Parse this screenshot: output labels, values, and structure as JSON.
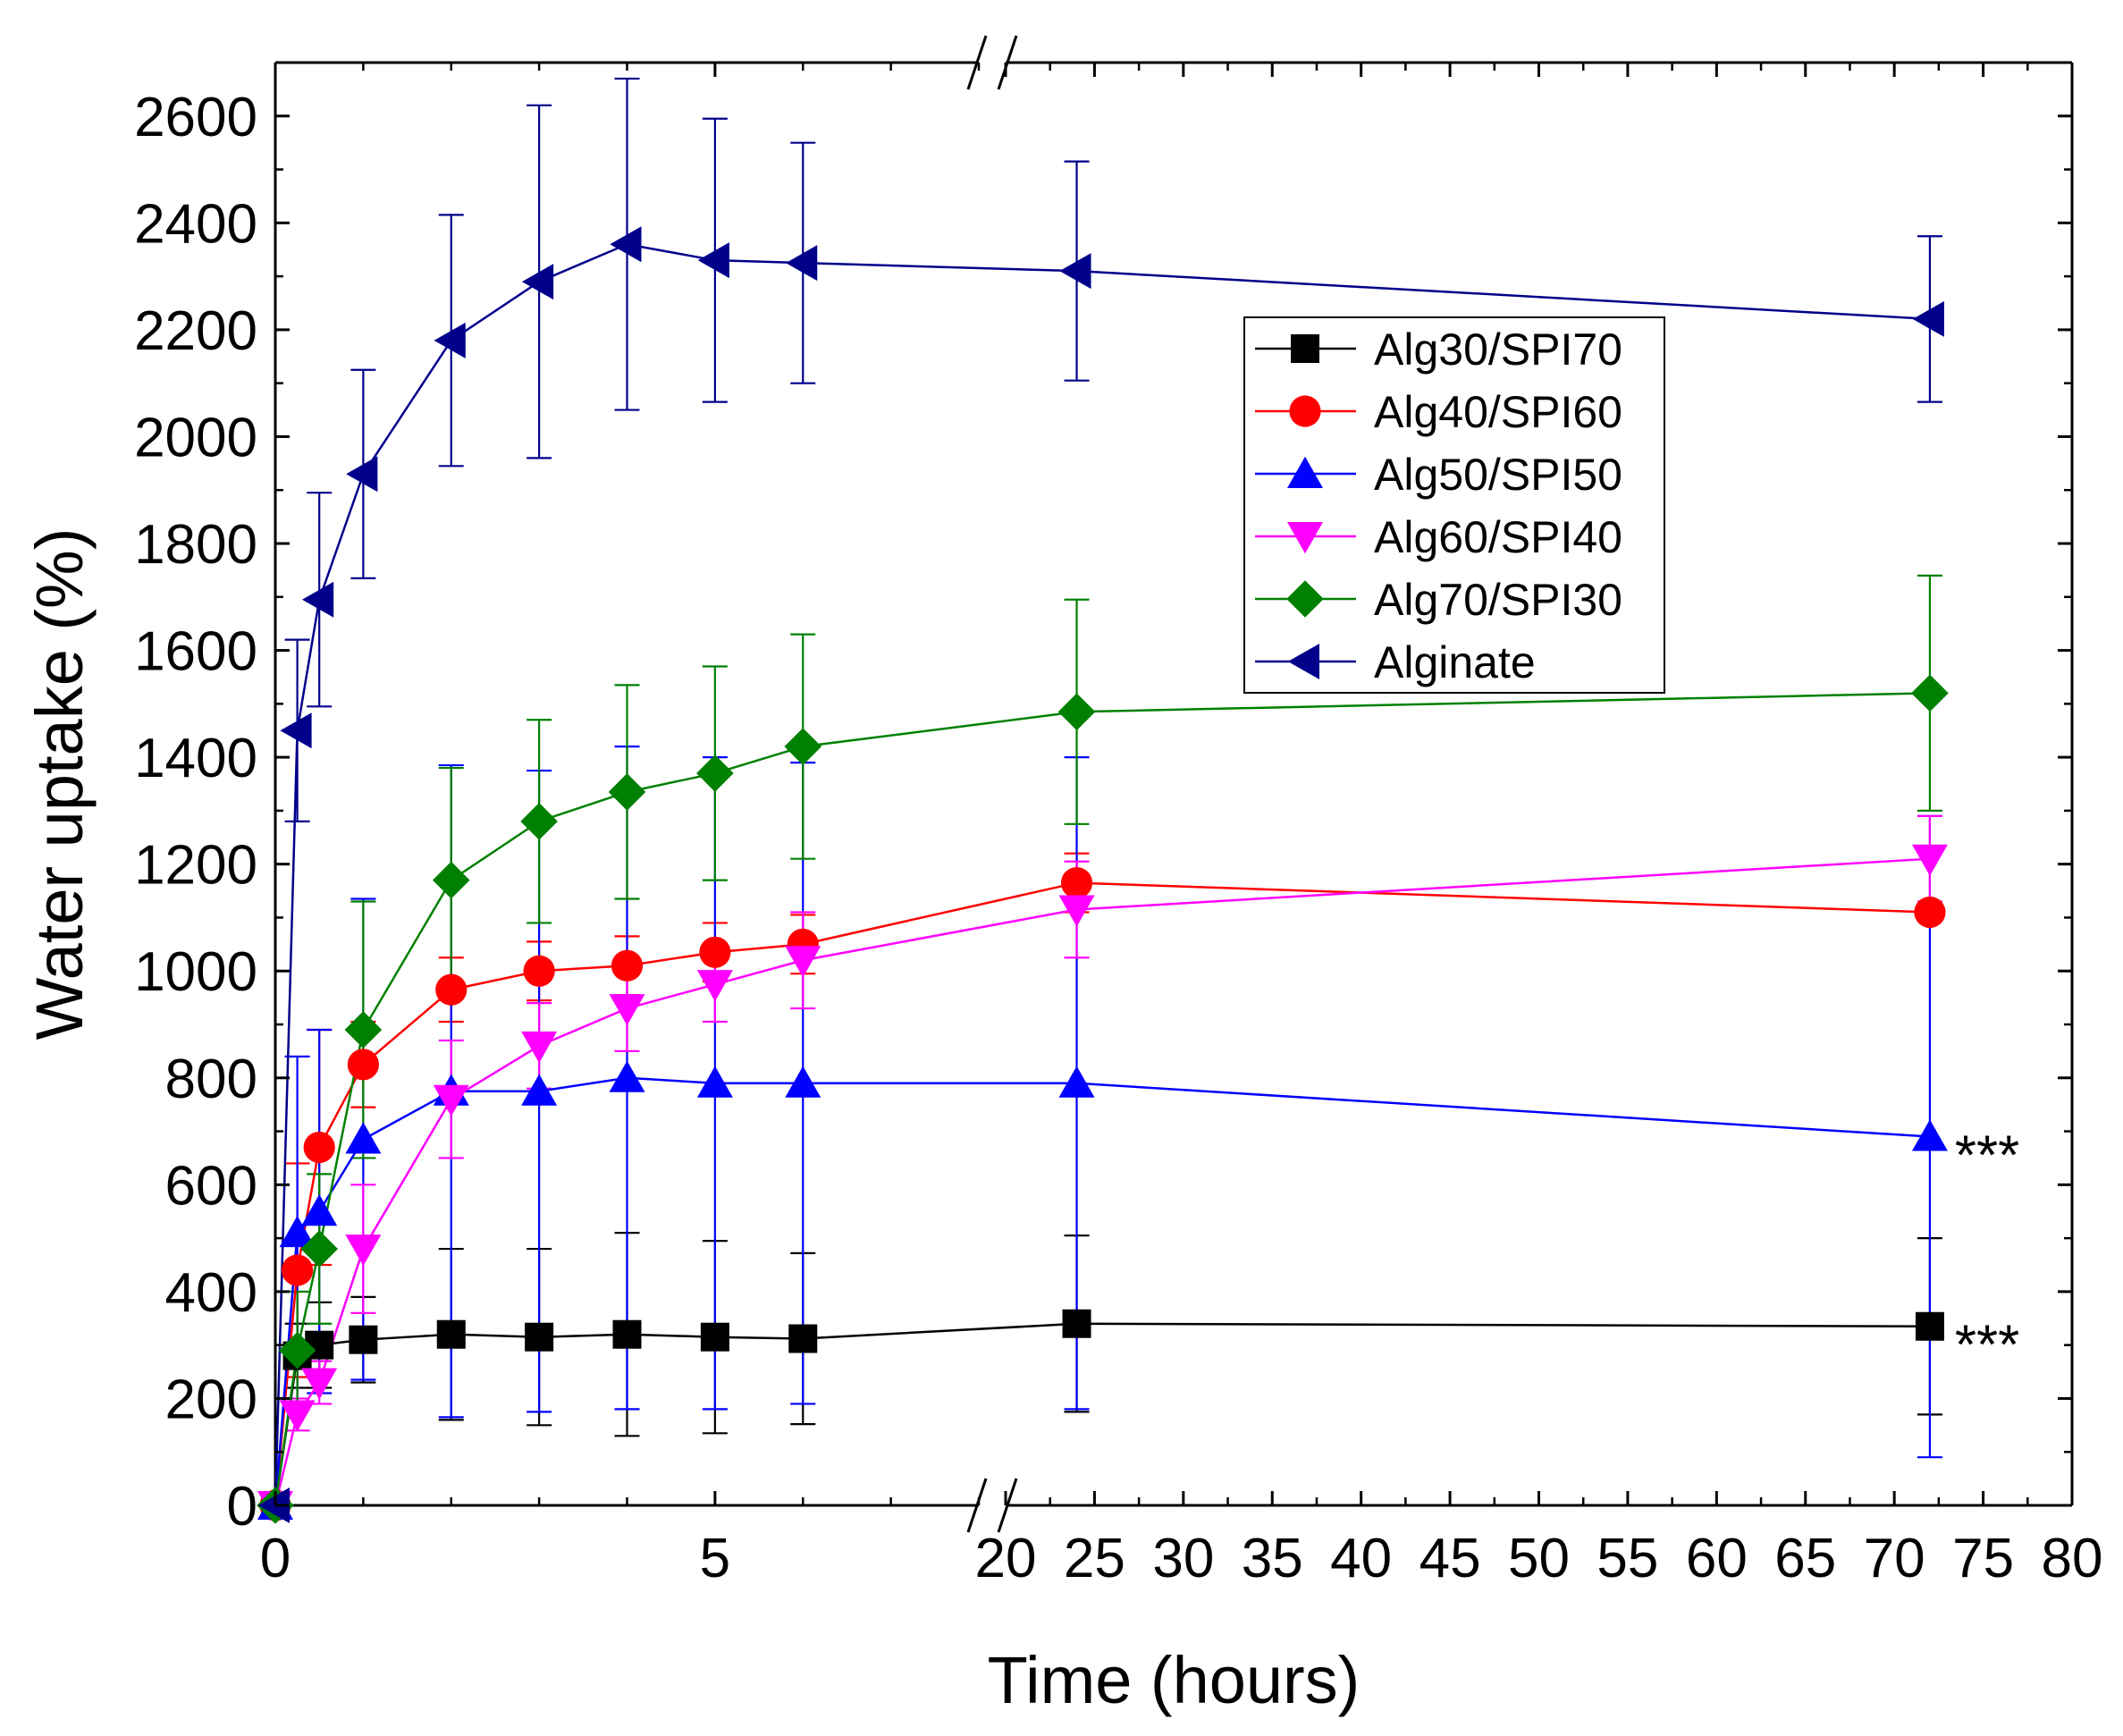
{
  "chart_data": {
    "type": "line",
    "xlabel": "Time (hours)",
    "ylabel": "Water uptake (%)",
    "ylim": [
      0,
      2700
    ],
    "y_ticks": [
      0,
      200,
      400,
      600,
      800,
      1000,
      1200,
      1400,
      1600,
      1800,
      2000,
      2200,
      2400,
      2600
    ],
    "x_axis_break": {
      "left_range": [
        0,
        8
      ],
      "right_range": [
        20,
        80
      ]
    },
    "x_ticks_left": [
      0,
      5
    ],
    "x_ticks_right": [
      20,
      25,
      30,
      35,
      40,
      45,
      50,
      55,
      60,
      65,
      70,
      75,
      80
    ],
    "legend_position": "upper-right",
    "series": [
      {
        "name": "Alg30/SPI70",
        "color": "#000000",
        "marker": "square",
        "x": [
          0,
          0.25,
          0.5,
          1,
          2,
          3,
          4,
          5,
          6,
          24,
          72
        ],
        "y": [
          0,
          280,
          300,
          310,
          320,
          315,
          320,
          315,
          312,
          340,
          335
        ],
        "err": [
          0,
          60,
          80,
          80,
          160,
          165,
          190,
          180,
          160,
          165,
          165
        ]
      },
      {
        "name": "Alg40/SPI60",
        "color": "#ff0000",
        "marker": "circle",
        "x": [
          0,
          0.25,
          0.5,
          1,
          2,
          3,
          4,
          5,
          6,
          24,
          72
        ],
        "y": [
          0,
          440,
          670,
          825,
          965,
          1000,
          1010,
          1035,
          1050,
          1165,
          1110
        ],
        "err": [
          0,
          200,
          220,
          80,
          60,
          55,
          55,
          55,
          55,
          55,
          0
        ]
      },
      {
        "name": "Alg50/SPI50",
        "color": "#0000ff",
        "marker": "triangle-up",
        "x": [
          0,
          0.25,
          0.5,
          1,
          2,
          3,
          4,
          5,
          6,
          24,
          72
        ],
        "y": [
          0,
          510,
          550,
          685,
          775,
          775,
          800,
          790,
          790,
          790,
          690
        ],
        "err": [
          0,
          330,
          340,
          450,
          610,
          600,
          620,
          610,
          600,
          610,
          600
        ]
      },
      {
        "name": "Alg60/SPI40",
        "color": "#ff00ff",
        "marker": "triangle-down",
        "x": [
          0,
          0.25,
          0.5,
          1,
          2,
          3,
          4,
          5,
          6,
          24,
          72
        ],
        "y": [
          0,
          170,
          230,
          480,
          760,
          860,
          930,
          975,
          1020,
          1115,
          1210
        ],
        "err": [
          0,
          30,
          40,
          120,
          110,
          80,
          80,
          70,
          90,
          90,
          80
        ]
      },
      {
        "name": "Alg70/SPI30",
        "color": "#008000",
        "marker": "diamond",
        "x": [
          0,
          0.25,
          0.5,
          1,
          2,
          3,
          4,
          5,
          6,
          24,
          72
        ],
        "y": [
          0,
          290,
          480,
          890,
          1170,
          1280,
          1335,
          1370,
          1420,
          1485,
          1520
        ],
        "err": [
          0,
          110,
          140,
          240,
          210,
          190,
          200,
          200,
          210,
          210,
          220
        ]
      },
      {
        "name": "Alginate",
        "color": "#00008b",
        "marker": "triangle-left",
        "x": [
          0,
          0.25,
          0.5,
          1,
          2,
          3,
          4,
          5,
          6,
          24,
          72
        ],
        "y": [
          0,
          1450,
          1695,
          1930,
          2180,
          2290,
          2360,
          2330,
          2325,
          2310,
          2220
        ],
        "err": [
          0,
          170,
          200,
          195,
          235,
          330,
          310,
          265,
          225,
          205,
          155
        ]
      }
    ],
    "annotations": [
      {
        "series": "Alg50/SPI50",
        "x": 72,
        "y": 690,
        "text": "***"
      },
      {
        "series": "Alg30/SPI70",
        "x": 72,
        "y": 335,
        "text": "***"
      }
    ]
  }
}
